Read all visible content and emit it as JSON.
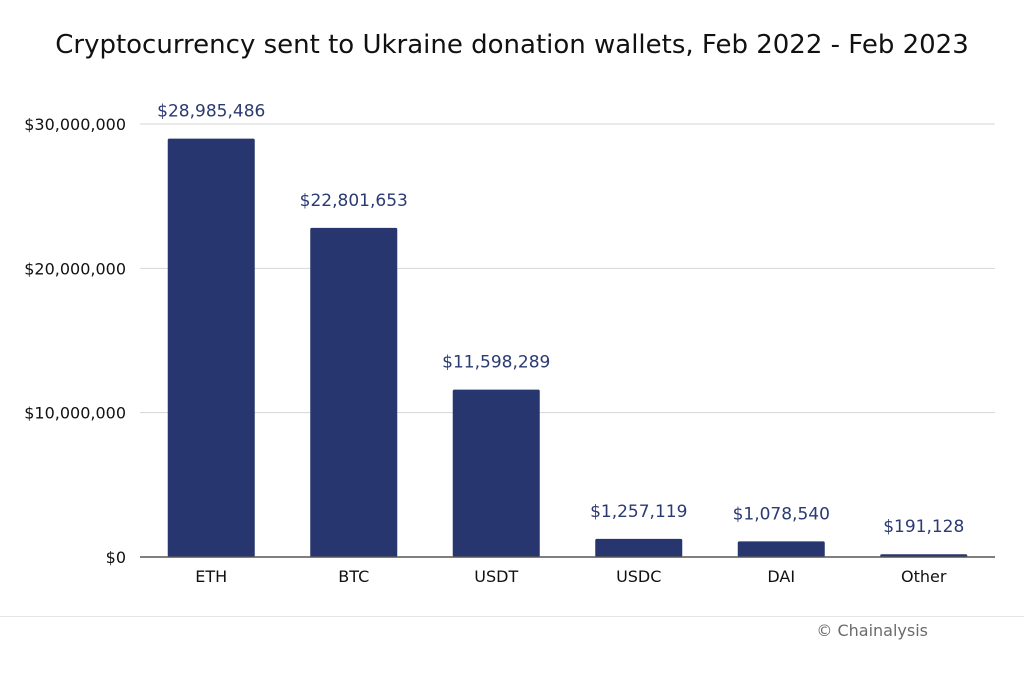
{
  "chart_data": {
    "type": "bar",
    "title": "Cryptocurrency sent to Ukraine donation wallets, Feb 2022 - Feb 2023",
    "categories": [
      "ETH",
      "BTC",
      "USDT",
      "USDC",
      "DAI",
      "Other"
    ],
    "values": [
      28985486,
      22801653,
      11598289,
      1257119,
      1078540,
      191128
    ],
    "value_labels": [
      "$28,985,486",
      "$22,801,653",
      "$11,598,289",
      "$1,257,119",
      "$1,078,540",
      "$191,128"
    ],
    "ylim": [
      0,
      30000000
    ],
    "yticks": [
      0,
      10000000,
      20000000,
      30000000
    ],
    "ytick_labels": [
      "$0",
      "$10,000,000",
      "$20,000,000",
      "$30,000,000"
    ],
    "xlabel": "",
    "ylabel": "",
    "grid": true,
    "legend": "none"
  },
  "colors": {
    "bar": "#27366e",
    "value_label": "#2a3a73",
    "grid": "#d6d6d6",
    "axis": "#555555"
  },
  "credit": "© Chainalysis"
}
